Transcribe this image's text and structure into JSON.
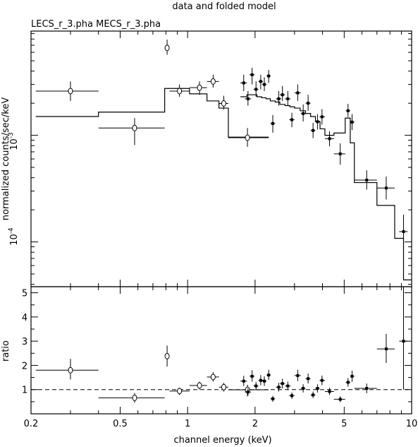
{
  "title": "data and folded model",
  "file_label": "LECS_r_3.pha MECS_r_3.pha",
  "chart_data": [
    {
      "type": "scatter",
      "panel": "top",
      "xlabel": "",
      "ylabel": "normalized counts/sec/keV",
      "xscale": "log",
      "yscale": "log",
      "xlim": [
        0.2,
        10
      ],
      "ylim": [
        3.8e-05,
        0.0095
      ],
      "y_tick_labels": [
        {
          "base": "10",
          "exp": "-3",
          "value": 0.001
        },
        {
          "base": "10",
          "exp": "-4",
          "value": 0.0001
        }
      ],
      "series": [
        {
          "name": "LECS_r_3.pha",
          "marker": "open-circle",
          "points": [
            {
              "x": 0.3,
              "xlo": 0.21,
              "xhi": 0.4,
              "y": 0.0026,
              "ylo": 0.0021,
              "yhi": 0.0032
            },
            {
              "x": 0.58,
              "xlo": 0.4,
              "xhi": 0.79,
              "y": 0.00117,
              "ylo": 0.00081,
              "yhi": 0.00145
            },
            {
              "x": 0.81,
              "xlo": 0.79,
              "xhi": 0.83,
              "y": 0.0066,
              "ylo": 0.0057,
              "yhi": 0.0079
            },
            {
              "x": 0.92,
              "xlo": 0.83,
              "xhi": 1.02,
              "y": 0.0026,
              "ylo": 0.0023,
              "yhi": 0.003
            },
            {
              "x": 1.13,
              "xlo": 1.02,
              "xhi": 1.22,
              "y": 0.0028,
              "ylo": 0.0024,
              "yhi": 0.0032
            },
            {
              "x": 1.3,
              "xlo": 1.22,
              "xhi": 1.38,
              "y": 0.0032,
              "ylo": 0.0028,
              "yhi": 0.0037
            },
            {
              "x": 1.45,
              "xlo": 1.38,
              "xhi": 1.52,
              "y": 0.00199,
              "ylo": 0.00175,
              "yhi": 0.00235
            },
            {
              "x": 1.85,
              "xlo": 1.52,
              "xhi": 2.3,
              "y": 0.00095,
              "ylo": 0.00078,
              "yhi": 0.00117
            }
          ]
        },
        {
          "name": "MECS_r_3.pha",
          "marker": "filled-square",
          "points": [
            {
              "x": 1.78,
              "xlo": 1.72,
              "xhi": 1.84,
              "y": 0.0031,
              "ylo": 0.0026,
              "yhi": 0.0037
            },
            {
              "x": 1.86,
              "xlo": 1.8,
              "xhi": 1.92,
              "y": 0.0022,
              "ylo": 0.0019,
              "yhi": 0.0026
            },
            {
              "x": 1.94,
              "xlo": 1.89,
              "xhi": 1.99,
              "y": 0.0037,
              "ylo": 0.003,
              "yhi": 0.0043
            },
            {
              "x": 2.02,
              "xlo": 1.97,
              "xhi": 2.07,
              "y": 0.0027,
              "ylo": 0.0023,
              "yhi": 0.0032
            },
            {
              "x": 2.12,
              "xlo": 2.07,
              "xhi": 2.17,
              "y": 0.0032,
              "ylo": 0.0027,
              "yhi": 0.0037
            },
            {
              "x": 2.2,
              "xlo": 2.15,
              "xhi": 2.25,
              "y": 0.003,
              "ylo": 0.0026,
              "yhi": 0.0035
            },
            {
              "x": 2.3,
              "xlo": 2.25,
              "xhi": 2.35,
              "y": 0.0036,
              "ylo": 0.0031,
              "yhi": 0.0041
            },
            {
              "x": 2.4,
              "xlo": 2.34,
              "xhi": 2.46,
              "y": 0.00129,
              "ylo": 0.00106,
              "yhi": 0.00155
            },
            {
              "x": 2.55,
              "xlo": 2.48,
              "xhi": 2.62,
              "y": 0.0022,
              "ylo": 0.0019,
              "yhi": 0.0026
            },
            {
              "x": 2.65,
              "xlo": 2.58,
              "xhi": 2.72,
              "y": 0.0024,
              "ylo": 0.0021,
              "yhi": 0.0029
            },
            {
              "x": 2.8,
              "xlo": 2.72,
              "xhi": 2.88,
              "y": 0.0022,
              "ylo": 0.0019,
              "yhi": 0.0026
            },
            {
              "x": 2.92,
              "xlo": 2.84,
              "xhi": 3.0,
              "y": 0.0014,
              "ylo": 0.00119,
              "yhi": 0.00163
            },
            {
              "x": 3.1,
              "xlo": 3.0,
              "xhi": 3.2,
              "y": 0.0025,
              "ylo": 0.0021,
              "yhi": 0.003
            },
            {
              "x": 3.28,
              "xlo": 3.2,
              "xhi": 3.36,
              "y": 0.0016,
              "ylo": 0.00135,
              "yhi": 0.00195
            },
            {
              "x": 3.45,
              "xlo": 3.36,
              "xhi": 3.54,
              "y": 0.002,
              "ylo": 0.0017,
              "yhi": 0.0024
            },
            {
              "x": 3.63,
              "xlo": 3.54,
              "xhi": 3.72,
              "y": 0.00111,
              "ylo": 0.00094,
              "yhi": 0.00131
            },
            {
              "x": 3.8,
              "xlo": 3.72,
              "xhi": 3.88,
              "y": 0.00134,
              "ylo": 0.00113,
              "yhi": 0.00158
            },
            {
              "x": 3.98,
              "xlo": 3.88,
              "xhi": 4.1,
              "y": 0.00149,
              "ylo": 0.00126,
              "yhi": 0.00176
            },
            {
              "x": 4.3,
              "xlo": 4.1,
              "xhi": 4.5,
              "y": 0.00093,
              "ylo": 0.00079,
              "yhi": 0.00109
            },
            {
              "x": 4.8,
              "xlo": 4.5,
              "xhi": 5.05,
              "y": 0.00067,
              "ylo": 0.00053,
              "yhi": 0.00084
            },
            {
              "x": 5.2,
              "xlo": 5.08,
              "xhi": 5.32,
              "y": 0.0017,
              "ylo": 0.00148,
              "yhi": 0.00197
            },
            {
              "x": 5.42,
              "xlo": 5.32,
              "xhi": 5.55,
              "y": 0.00133,
              "ylo": 0.00112,
              "yhi": 0.00158
            },
            {
              "x": 6.3,
              "xlo": 5.55,
              "xhi": 7.0,
              "y": 0.00038,
              "ylo": 0.00031,
              "yhi": 0.00047
            },
            {
              "x": 7.7,
              "xlo": 7.0,
              "xhi": 8.4,
              "y": 0.00032,
              "ylo": 0.00025,
              "yhi": 0.00041
            },
            {
              "x": 9.2,
              "xlo": 8.8,
              "xhi": 9.6,
              "y": 0.000125,
              "ylo": 7.6e-05,
              "yhi": 0.00018
            }
          ]
        }
      ],
      "models": [
        {
          "name": "LECS model",
          "bins": [
            {
              "xlo": 0.21,
              "xhi": 0.4,
              "y": 0.0015
            },
            {
              "xlo": 0.4,
              "xhi": 0.79,
              "y": 0.00165
            },
            {
              "xlo": 0.79,
              "xhi": 0.83,
              "y": 0.00275
            },
            {
              "xlo": 0.83,
              "xhi": 1.02,
              "y": 0.00275
            },
            {
              "xlo": 1.02,
              "xhi": 1.22,
              "y": 0.00245
            },
            {
              "xlo": 1.22,
              "xhi": 1.38,
              "y": 0.0021
            },
            {
              "xlo": 1.38,
              "xhi": 1.52,
              "y": 0.0018
            },
            {
              "xlo": 1.52,
              "xhi": 2.3,
              "y": 0.00096
            }
          ]
        },
        {
          "name": "MECS model",
          "bins": [
            {
              "xlo": 1.72,
              "xhi": 1.84,
              "y": 0.0023
            },
            {
              "xlo": 1.84,
              "xhi": 1.94,
              "y": 0.0024
            },
            {
              "xlo": 1.94,
              "xhi": 2.04,
              "y": 0.0024
            },
            {
              "xlo": 2.04,
              "xhi": 2.14,
              "y": 0.0023
            },
            {
              "xlo": 2.14,
              "xhi": 2.24,
              "y": 0.00225
            },
            {
              "xlo": 2.24,
              "xhi": 2.34,
              "y": 0.0022
            },
            {
              "xlo": 2.34,
              "xhi": 2.46,
              "y": 0.0021
            },
            {
              "xlo": 2.46,
              "xhi": 2.58,
              "y": 0.00205
            },
            {
              "xlo": 2.58,
              "xhi": 2.72,
              "y": 0.00195
            },
            {
              "xlo": 2.72,
              "xhi": 2.86,
              "y": 0.0019
            },
            {
              "xlo": 2.86,
              "xhi": 3.0,
              "y": 0.00185
            },
            {
              "xlo": 3.0,
              "xhi": 3.18,
              "y": 0.0018
            },
            {
              "xlo": 3.18,
              "xhi": 3.36,
              "y": 0.0017
            },
            {
              "xlo": 3.36,
              "xhi": 3.54,
              "y": 0.0016
            },
            {
              "xlo": 3.54,
              "xhi": 3.72,
              "y": 0.0015
            },
            {
              "xlo": 3.72,
              "xhi": 3.9,
              "y": 0.00135
            },
            {
              "xlo": 3.9,
              "xhi": 4.1,
              "y": 0.00115
            },
            {
              "xlo": 4.1,
              "xhi": 4.5,
              "y": 0.001
            },
            {
              "xlo": 4.5,
              "xhi": 5.05,
              "y": 0.00105
            },
            {
              "xlo": 5.05,
              "xhi": 5.32,
              "y": 0.00145
            },
            {
              "xlo": 5.32,
              "xhi": 5.55,
              "y": 0.00085
            },
            {
              "xlo": 5.55,
              "xhi": 7.0,
              "y": 0.00036
            },
            {
              "xlo": 7.0,
              "xhi": 8.4,
              "y": 0.00022
            },
            {
              "xlo": 8.4,
              "xhi": 9.2,
              "y": 0.000108
            },
            {
              "xlo": 9.2,
              "xhi": 10.0,
              "y": 4.4e-05
            }
          ]
        }
      ]
    },
    {
      "type": "scatter",
      "panel": "bottom",
      "xlabel": "channel energy (keV)",
      "ylabel": "ratio",
      "xscale": "log",
      "yscale": "linear",
      "xlim": [
        0.2,
        10
      ],
      "ylim": [
        0,
        5.25
      ],
      "x_ticks": [
        {
          "label": "0.2",
          "value": 0.2
        },
        {
          "label": "0.5",
          "value": 0.5
        },
        {
          "label": "1",
          "value": 1
        },
        {
          "label": "2",
          "value": 2
        },
        {
          "label": "5",
          "value": 5
        },
        {
          "label": "10",
          "value": 10
        }
      ],
      "y_ticks": [
        "1",
        "2",
        "3",
        "4",
        "5"
      ],
      "reference_line": {
        "y": 1,
        "style": "dashed"
      },
      "series": [
        {
          "name": "LECS_r_3.pha",
          "marker": "open-circle",
          "points": [
            {
              "x": 0.3,
              "xlo": 0.21,
              "xhi": 0.4,
              "y": 1.8,
              "ylo": 1.42,
              "yhi": 2.27
            },
            {
              "x": 0.58,
              "xlo": 0.4,
              "xhi": 0.79,
              "y": 0.66,
              "ylo": 0.46,
              "yhi": 0.86
            },
            {
              "x": 0.81,
              "xlo": 0.79,
              "xhi": 0.83,
              "y": 2.38,
              "ylo": 1.95,
              "yhi": 2.82
            },
            {
              "x": 0.92,
              "xlo": 0.83,
              "xhi": 1.02,
              "y": 0.94,
              "ylo": 0.78,
              "yhi": 1.08
            },
            {
              "x": 1.13,
              "xlo": 1.02,
              "xhi": 1.22,
              "y": 1.17,
              "ylo": 1.0,
              "yhi": 1.33
            },
            {
              "x": 1.3,
              "xlo": 1.22,
              "xhi": 1.38,
              "y": 1.52,
              "ylo": 1.33,
              "yhi": 1.72
            },
            {
              "x": 1.45,
              "xlo": 1.38,
              "xhi": 1.52,
              "y": 1.1,
              "ylo": 0.92,
              "yhi": 1.28
            },
            {
              "x": 1.85,
              "xlo": 1.52,
              "xhi": 2.3,
              "y": 0.99,
              "ylo": 0.72,
              "yhi": 1.2
            }
          ]
        },
        {
          "name": "MECS_r_3.pha",
          "marker": "filled-square",
          "points": [
            {
              "x": 1.78,
              "xlo": 1.72,
              "xhi": 1.84,
              "y": 1.35,
              "ylo": 1.15,
              "yhi": 1.57
            },
            {
              "x": 1.86,
              "xlo": 1.8,
              "xhi": 1.92,
              "y": 0.9,
              "ylo": 0.75,
              "yhi": 1.05
            },
            {
              "x": 1.94,
              "xlo": 1.89,
              "xhi": 1.99,
              "y": 1.55,
              "ylo": 1.33,
              "yhi": 1.8
            },
            {
              "x": 2.02,
              "xlo": 1.97,
              "xhi": 2.07,
              "y": 1.15,
              "ylo": 0.98,
              "yhi": 1.32
            },
            {
              "x": 2.12,
              "xlo": 2.07,
              "xhi": 2.17,
              "y": 1.38,
              "ylo": 1.18,
              "yhi": 1.6
            },
            {
              "x": 2.2,
              "xlo": 2.15,
              "xhi": 2.25,
              "y": 1.35,
              "ylo": 1.15,
              "yhi": 1.55
            },
            {
              "x": 2.3,
              "xlo": 2.25,
              "xhi": 2.35,
              "y": 1.6,
              "ylo": 1.4,
              "yhi": 1.82
            },
            {
              "x": 2.4,
              "xlo": 2.34,
              "xhi": 2.46,
              "y": 0.62,
              "ylo": 0.5,
              "yhi": 0.74
            },
            {
              "x": 2.55,
              "xlo": 2.48,
              "xhi": 2.62,
              "y": 1.1,
              "ylo": 0.92,
              "yhi": 1.28
            },
            {
              "x": 2.65,
              "xlo": 2.58,
              "xhi": 2.72,
              "y": 1.25,
              "ylo": 1.05,
              "yhi": 1.45
            },
            {
              "x": 2.8,
              "xlo": 2.72,
              "xhi": 2.88,
              "y": 1.15,
              "ylo": 0.98,
              "yhi": 1.33
            },
            {
              "x": 2.92,
              "xlo": 2.84,
              "xhi": 3.0,
              "y": 0.75,
              "ylo": 0.62,
              "yhi": 0.88
            },
            {
              "x": 3.1,
              "xlo": 3.0,
              "xhi": 3.2,
              "y": 1.58,
              "ylo": 1.35,
              "yhi": 1.82
            },
            {
              "x": 3.28,
              "xlo": 3.2,
              "xhi": 3.36,
              "y": 1.05,
              "ylo": 0.88,
              "yhi": 1.22
            },
            {
              "x": 3.45,
              "xlo": 3.36,
              "xhi": 3.54,
              "y": 1.45,
              "ylo": 1.25,
              "yhi": 1.66
            },
            {
              "x": 3.63,
              "xlo": 3.54,
              "xhi": 3.72,
              "y": 0.78,
              "ylo": 0.65,
              "yhi": 0.92
            },
            {
              "x": 3.8,
              "xlo": 3.72,
              "xhi": 3.88,
              "y": 1.05,
              "ylo": 0.88,
              "yhi": 1.22
            },
            {
              "x": 3.98,
              "xlo": 3.88,
              "xhi": 4.1,
              "y": 1.38,
              "ylo": 1.18,
              "yhi": 1.58
            },
            {
              "x": 4.3,
              "xlo": 4.1,
              "xhi": 4.5,
              "y": 0.92,
              "ylo": 0.78,
              "yhi": 1.08
            },
            {
              "x": 4.8,
              "xlo": 4.5,
              "xhi": 5.05,
              "y": 0.6,
              "ylo": 0.48,
              "yhi": 0.72
            },
            {
              "x": 5.2,
              "xlo": 5.08,
              "xhi": 5.32,
              "y": 1.3,
              "ylo": 1.12,
              "yhi": 1.48
            },
            {
              "x": 5.42,
              "xlo": 5.32,
              "xhi": 5.55,
              "y": 1.55,
              "ylo": 1.32,
              "yhi": 1.78
            },
            {
              "x": 6.3,
              "xlo": 5.55,
              "xhi": 7.0,
              "y": 1.05,
              "ylo": 0.85,
              "yhi": 1.25
            },
            {
              "x": 7.7,
              "xlo": 7.0,
              "xhi": 8.4,
              "y": 2.68,
              "ylo": 2.1,
              "yhi": 3.3
            },
            {
              "x": 9.2,
              "xlo": 8.8,
              "xhi": 9.6,
              "y": 3.0,
              "ylo": 1.0,
              "yhi": 5.25
            }
          ]
        }
      ]
    }
  ]
}
